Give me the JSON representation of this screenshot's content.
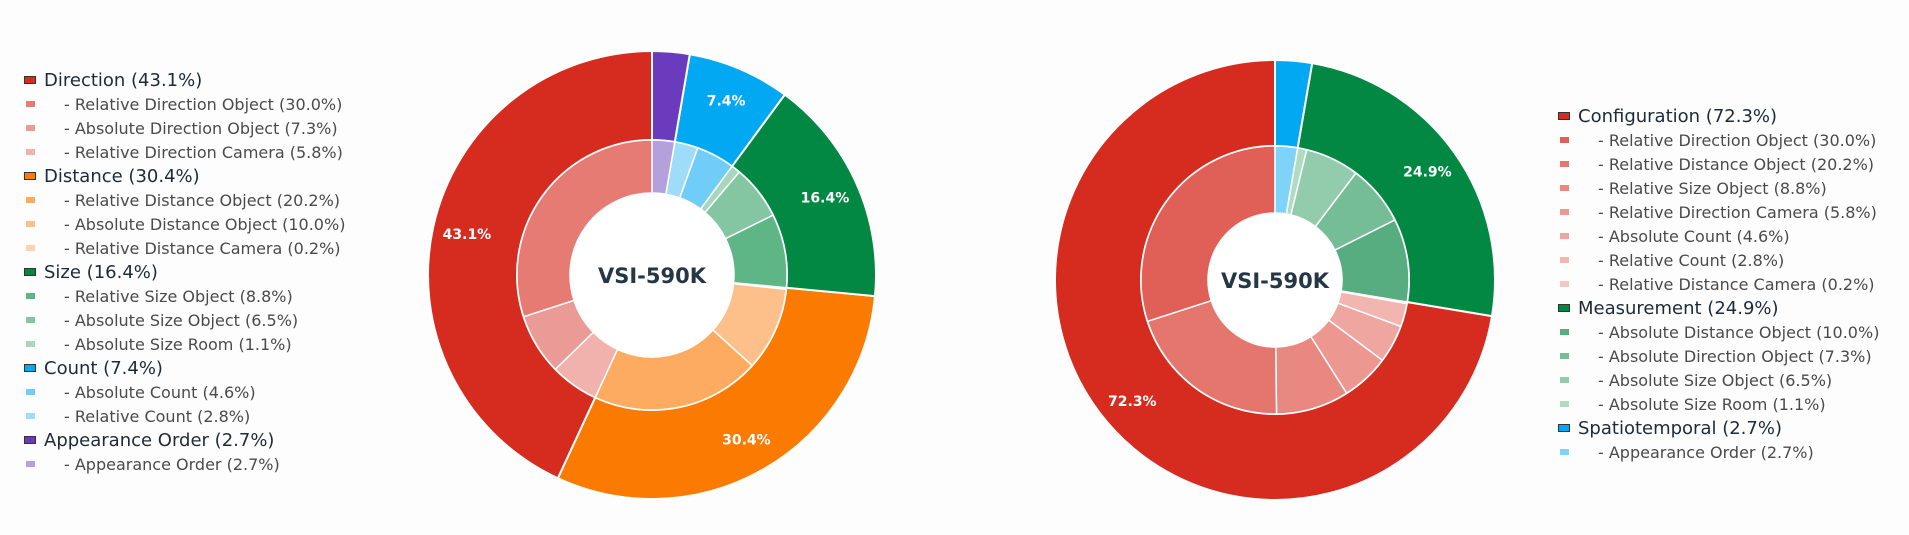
{
  "chart_data": [
    {
      "type": "pie",
      "center_label": "VSI-590K",
      "legend_position": "left",
      "categories": [
        {
          "name": "Direction",
          "pct_label": "(43.1%)",
          "value": 43.1,
          "color": "#d62c20",
          "sub": [
            {
              "name": "- Relative Direction Object",
              "pct_label": "(30.0%)",
              "value": 30.0,
              "color": "#e57b73"
            },
            {
              "name": "- Absolute Direction Object",
              "pct_label": "(7.3%)",
              "value": 7.3,
              "color": "#eb9b95"
            },
            {
              "name": "- Relative Direction Camera",
              "pct_label": "(5.8%)",
              "value": 5.8,
              "color": "#f1b2ae"
            }
          ]
        },
        {
          "name": "Distance",
          "pct_label": "(30.4%)",
          "value": 30.4,
          "color": "#fb7a02",
          "sub": [
            {
              "name": "- Relative Distance Object",
              "pct_label": "(20.2%)",
              "value": 20.2,
              "color": "#feab62"
            },
            {
              "name": "- Absolute Distance Object",
              "pct_label": "(10.0%)",
              "value": 10.0,
              "color": "#fec08a"
            },
            {
              "name": "- Relative Distance Camera",
              "pct_label": "(0.2%)",
              "value": 0.2,
              "color": "#fed3ad"
            }
          ]
        },
        {
          "name": "Size",
          "pct_label": "(16.4%)",
          "value": 16.4,
          "color": "#028842",
          "sub": [
            {
              "name": "- Relative Size Object",
              "pct_label": "(8.8%)",
              "value": 8.8,
              "color": "#5eb585"
            },
            {
              "name": "- Absolute Size Object",
              "pct_label": "(6.5%)",
              "value": 6.5,
              "color": "#84c6a1"
            },
            {
              "name": "- Absolute Size Room",
              "pct_label": "(1.1%)",
              "value": 1.1,
              "color": "#a8d7bd"
            }
          ]
        },
        {
          "name": "Count",
          "pct_label": "(7.4%)",
          "value": 7.4,
          "color": "#03a8f3",
          "sub": [
            {
              "name": "- Absolute Count",
              "pct_label": "(4.6%)",
              "value": 4.6,
              "color": "#6fcdf8"
            },
            {
              "name": "- Relative Count",
              "pct_label": "(2.8%)",
              "value": 2.8,
              "color": "#9fdcf9"
            }
          ]
        },
        {
          "name": "Appearance Order",
          "pct_label": "(2.7%)",
          "value": 2.7,
          "color": "#6a3bbd",
          "sub": [
            {
              "name": "- Appearance Order",
              "pct_label": "(2.7%)",
              "value": 2.7,
              "color": "#b4a1dc"
            }
          ]
        }
      ],
      "slice_labels": [
        "43.1%",
        "30.4%",
        "16.4%",
        "7.4%",
        ""
      ]
    },
    {
      "type": "pie",
      "center_label": "VSI-590K",
      "legend_position": "right",
      "categories": [
        {
          "name": "Configuration",
          "pct_label": "(72.3%)",
          "value": 72.3,
          "color": "#d62c20",
          "sub": [
            {
              "name": "- Relative Direction Object",
              "pct_label": "(30.0%)",
              "value": 30.0,
              "color": "#e05f57"
            },
            {
              "name": "- Relative Distance Object",
              "pct_label": "(20.2%)",
              "value": 20.2,
              "color": "#e5766e"
            },
            {
              "name": "- Relative Size Object",
              "pct_label": "(8.8%)",
              "value": 8.8,
              "color": "#e98880"
            },
            {
              "name": "- Relative Direction Camera",
              "pct_label": "(5.8%)",
              "value": 5.8,
              "color": "#ec9891"
            },
            {
              "name": "- Absolute Count",
              "pct_label": "(4.6%)",
              "value": 4.6,
              "color": "#efa6a0"
            },
            {
              "name": "- Relative Count",
              "pct_label": "(2.8%)",
              "value": 2.8,
              "color": "#f2b5b0"
            },
            {
              "name": "- Relative Distance Camera",
              "pct_label": "(0.2%)",
              "value": 0.2,
              "color": "#f5c5c1"
            }
          ]
        },
        {
          "name": "Measurement",
          "pct_label": "(24.9%)",
          "value": 24.9,
          "color": "#028842",
          "sub": [
            {
              "name": "- Absolute Distance Object",
              "pct_label": "(10.0%)",
              "value": 10.0,
              "color": "#57ad80"
            },
            {
              "name": "- Absolute Direction Object",
              "pct_label": "(7.3%)",
              "value": 7.3,
              "color": "#75bd96"
            },
            {
              "name": "- Absolute Size Object",
              "pct_label": "(6.5%)",
              "value": 6.5,
              "color": "#93ccad"
            },
            {
              "name": "- Absolute Size Room",
              "pct_label": "(1.1%)",
              "value": 1.1,
              "color": "#b0dbc3"
            }
          ]
        },
        {
          "name": "Spatiotemporal",
          "pct_label": "(2.7%)",
          "value": 2.7,
          "color": "#03a8f3",
          "sub": [
            {
              "name": "- Appearance Order",
              "pct_label": "(2.7%)",
              "value": 2.7,
              "color": "#7fd3f9"
            }
          ]
        }
      ],
      "slice_labels": [
        "72.3%",
        "24.9%",
        ""
      ]
    }
  ]
}
